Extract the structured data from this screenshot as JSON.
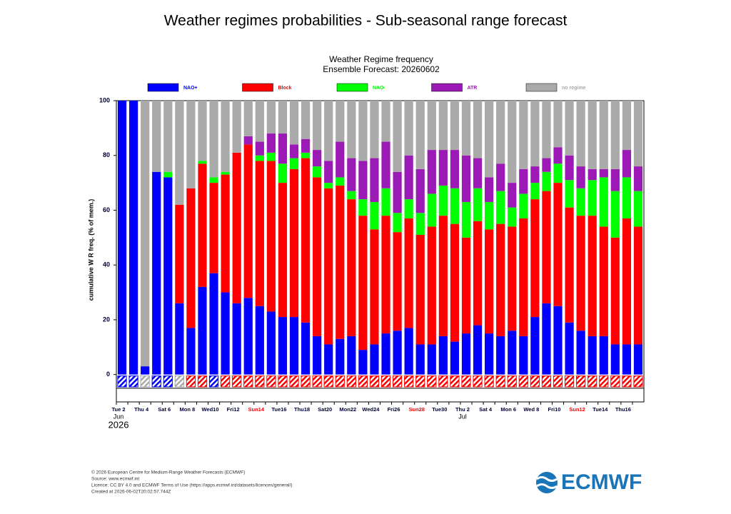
{
  "page_title": "Weather regimes probabilities - Sub-seasonal range forecast",
  "chart_data": {
    "type": "stacked-bar",
    "title": "Weather Regime frequency",
    "subtitle": "Ensemble Forecast: 20260602",
    "y_label": "cumulative W R freq. (% of mem.)",
    "categories": [
      "Tue 2",
      null,
      "Thu 4",
      null,
      "Sat 6",
      null,
      "Mon 8",
      null,
      "Wed10",
      null,
      "Fri12",
      null,
      "Sun14",
      null,
      "Tue16",
      null,
      "Thu18",
      null,
      "Sat20",
      null,
      "Mon22",
      null,
      "Wed24",
      null,
      "Fri26",
      null,
      "Sun28",
      null,
      "Tue30",
      null,
      "Thu 2",
      null,
      "Sat 4",
      null,
      "Mon 6",
      null,
      "Wed 8",
      null,
      "Fri10",
      null,
      "Sun12",
      null,
      "Tue14",
      null,
      "Thu16",
      null
    ],
    "months": [
      "Jun",
      "Jul"
    ],
    "year": "2026",
    "series": [
      {
        "name": "NAO+",
        "color": "#0000ff",
        "values": [
          100,
          100,
          3,
          74,
          72,
          26,
          17,
          32,
          37,
          30,
          26,
          28,
          25,
          23,
          21,
          21,
          19,
          14,
          11,
          13,
          14,
          9,
          11,
          15,
          16,
          17,
          11,
          11,
          14,
          12,
          15,
          18,
          15,
          14,
          16,
          14,
          21,
          26,
          25,
          19,
          16,
          14,
          14,
          11,
          11,
          11
        ]
      },
      {
        "name": "Block",
        "color": "#ff0000",
        "values": [
          0,
          0,
          0,
          0,
          0,
          36,
          51,
          45,
          33,
          43,
          55,
          56,
          53,
          55,
          49,
          54,
          60,
          58,
          57,
          56,
          50,
          49,
          42,
          43,
          36,
          40,
          40,
          43,
          44,
          43,
          35,
          38,
          38,
          41,
          38,
          43,
          43,
          41,
          45,
          42,
          42,
          44,
          40,
          39,
          46,
          43
        ]
      },
      {
        "name": "NAO-",
        "color": "#00ff00",
        "values": [
          0,
          0,
          0,
          0,
          2,
          0,
          0,
          1,
          2,
          1,
          0,
          0,
          2,
          3,
          7,
          4,
          2,
          4,
          2,
          3,
          3,
          6,
          10,
          10,
          7,
          7,
          8,
          12,
          11,
          13,
          13,
          12,
          10,
          12,
          7,
          9,
          6,
          7,
          7,
          10,
          10,
          13,
          18,
          17,
          15,
          13
        ]
      },
      {
        "name": "ATR",
        "color": "#9b19b4",
        "values": [
          0,
          0,
          0,
          0,
          0,
          0,
          0,
          0,
          0,
          0,
          0,
          3,
          5,
          7,
          11,
          5,
          5,
          6,
          8,
          13,
          12,
          14,
          16,
          17,
          15,
          16,
          16,
          16,
          13,
          14,
          17,
          11,
          9,
          10,
          9,
          9,
          6,
          5,
          6,
          9,
          8,
          4,
          3,
          8,
          10,
          9
        ]
      },
      {
        "name": "no regime",
        "color": "#aaaaaa",
        "values": [
          0,
          0,
          97,
          26,
          26,
          38,
          32,
          22,
          28,
          26,
          19,
          13,
          15,
          12,
          12,
          16,
          14,
          18,
          22,
          15,
          21,
          22,
          21,
          15,
          26,
          20,
          25,
          18,
          18,
          18,
          20,
          21,
          28,
          23,
          30,
          25,
          24,
          21,
          17,
          20,
          24,
          25,
          25,
          25,
          18,
          24
        ]
      }
    ],
    "ylim": [
      -10,
      100
    ],
    "yticks": [
      0,
      20,
      40,
      60,
      80,
      100
    ]
  },
  "footer": [
    "© 2026 European Centre for Medium-Range Weather Forecasts (ECMWF)",
    "Source: www.ecmwf.int",
    "Licence: CC BY 4.0 and ECMWF Terms of Use (https://apps.ecmwf.int/datasets/licences/general/)",
    "Created at 2026-06-02T20:02:57.744Z"
  ],
  "logo": "ECMWF"
}
